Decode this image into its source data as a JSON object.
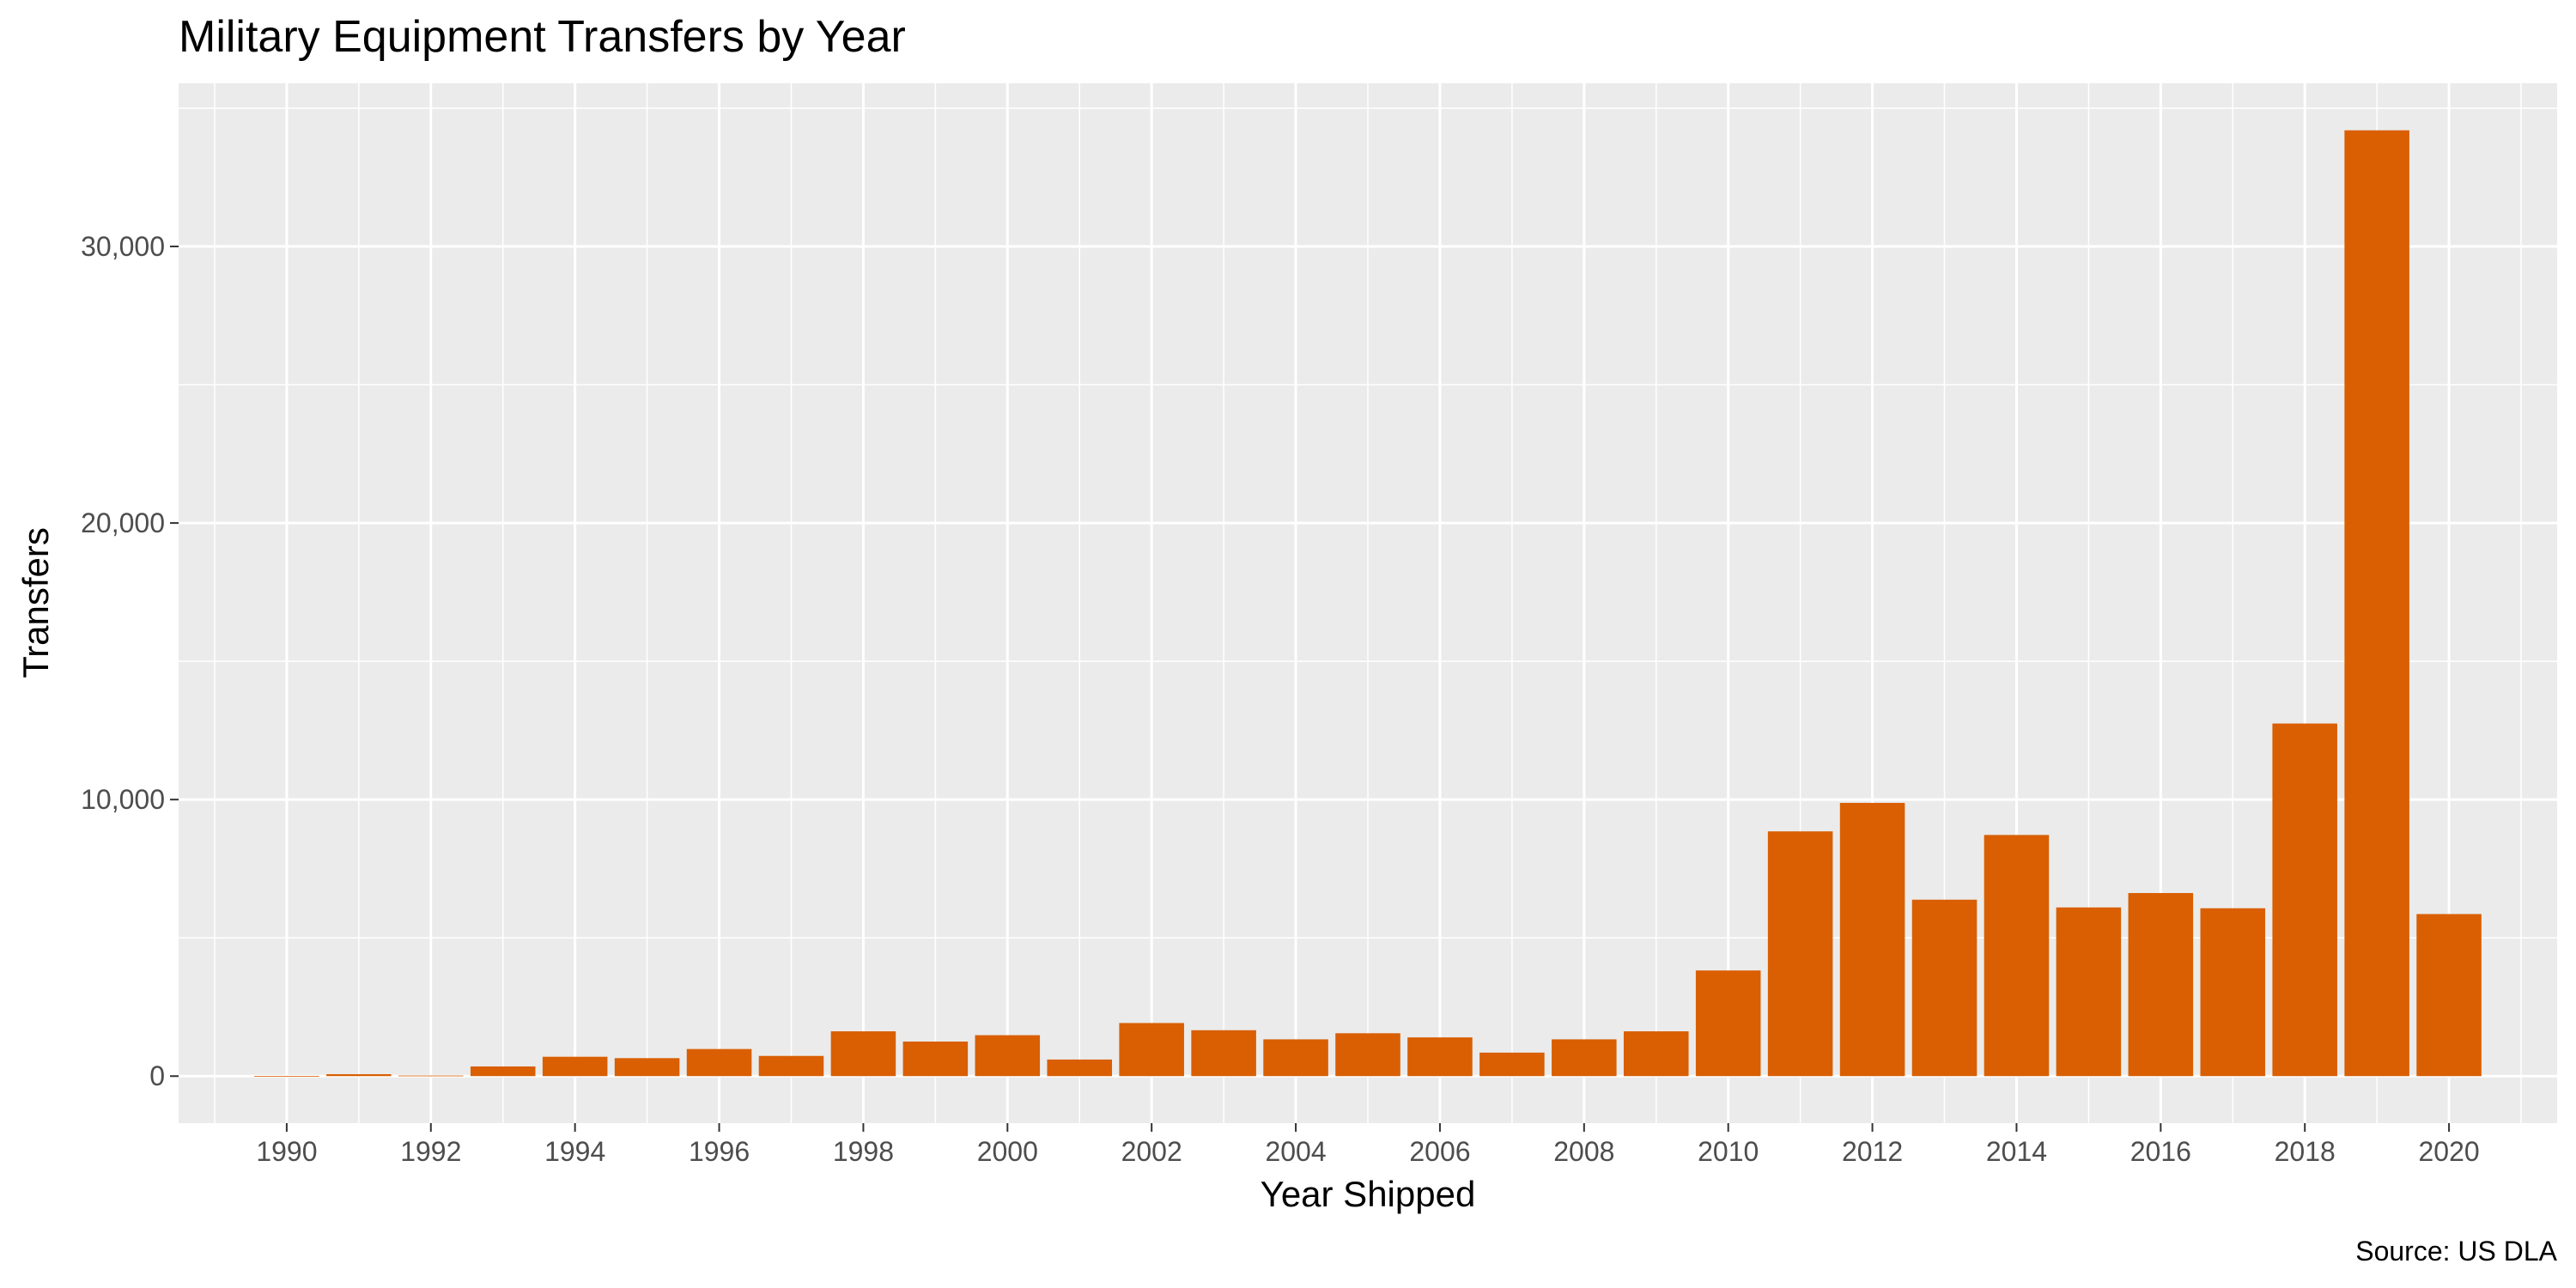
{
  "chart_data": {
    "type": "bar",
    "title": "Military Equipment Transfers by Year",
    "xlabel": "Year Shipped",
    "ylabel": "Transfers",
    "caption": "Source: US DLA",
    "bar_color": "#D95F02",
    "panel_background": "#EBEBEB",
    "grid_color": "#FFFFFF",
    "grid": true,
    "legend": "none",
    "xlim": [
      1988.5,
      2021.5
    ],
    "ylim": [
      -1700,
      35900
    ],
    "x_ticks": [
      1990,
      1992,
      1994,
      1996,
      1998,
      2000,
      2002,
      2004,
      2006,
      2008,
      2010,
      2012,
      2014,
      2016,
      2018,
      2020
    ],
    "x_tick_labels": [
      "1990",
      "1992",
      "1994",
      "1996",
      "1998",
      "2000",
      "2002",
      "2004",
      "2006",
      "2008",
      "2010",
      "2012",
      "2014",
      "2016",
      "2018",
      "2020"
    ],
    "y_ticks": [
      0,
      10000,
      20000,
      30000
    ],
    "y_tick_labels": [
      "0",
      "10,000",
      "20,000",
      "30,000"
    ],
    "x": [
      1990,
      1991,
      1992,
      1993,
      1994,
      1995,
      1996,
      1997,
      1998,
      1999,
      2000,
      2001,
      2002,
      2003,
      2004,
      2005,
      2006,
      2007,
      2008,
      2009,
      2010,
      2011,
      2012,
      2013,
      2014,
      2015,
      2016,
      2017,
      2018,
      2019,
      2020
    ],
    "values": [
      5,
      70,
      20,
      350,
      700,
      650,
      980,
      730,
      1620,
      1250,
      1480,
      600,
      1920,
      1660,
      1330,
      1550,
      1400,
      850,
      1330,
      1620,
      3820,
      8850,
      9880,
      6380,
      8720,
      6100,
      6620,
      6070,
      12750,
      34200,
      5860
    ]
  }
}
